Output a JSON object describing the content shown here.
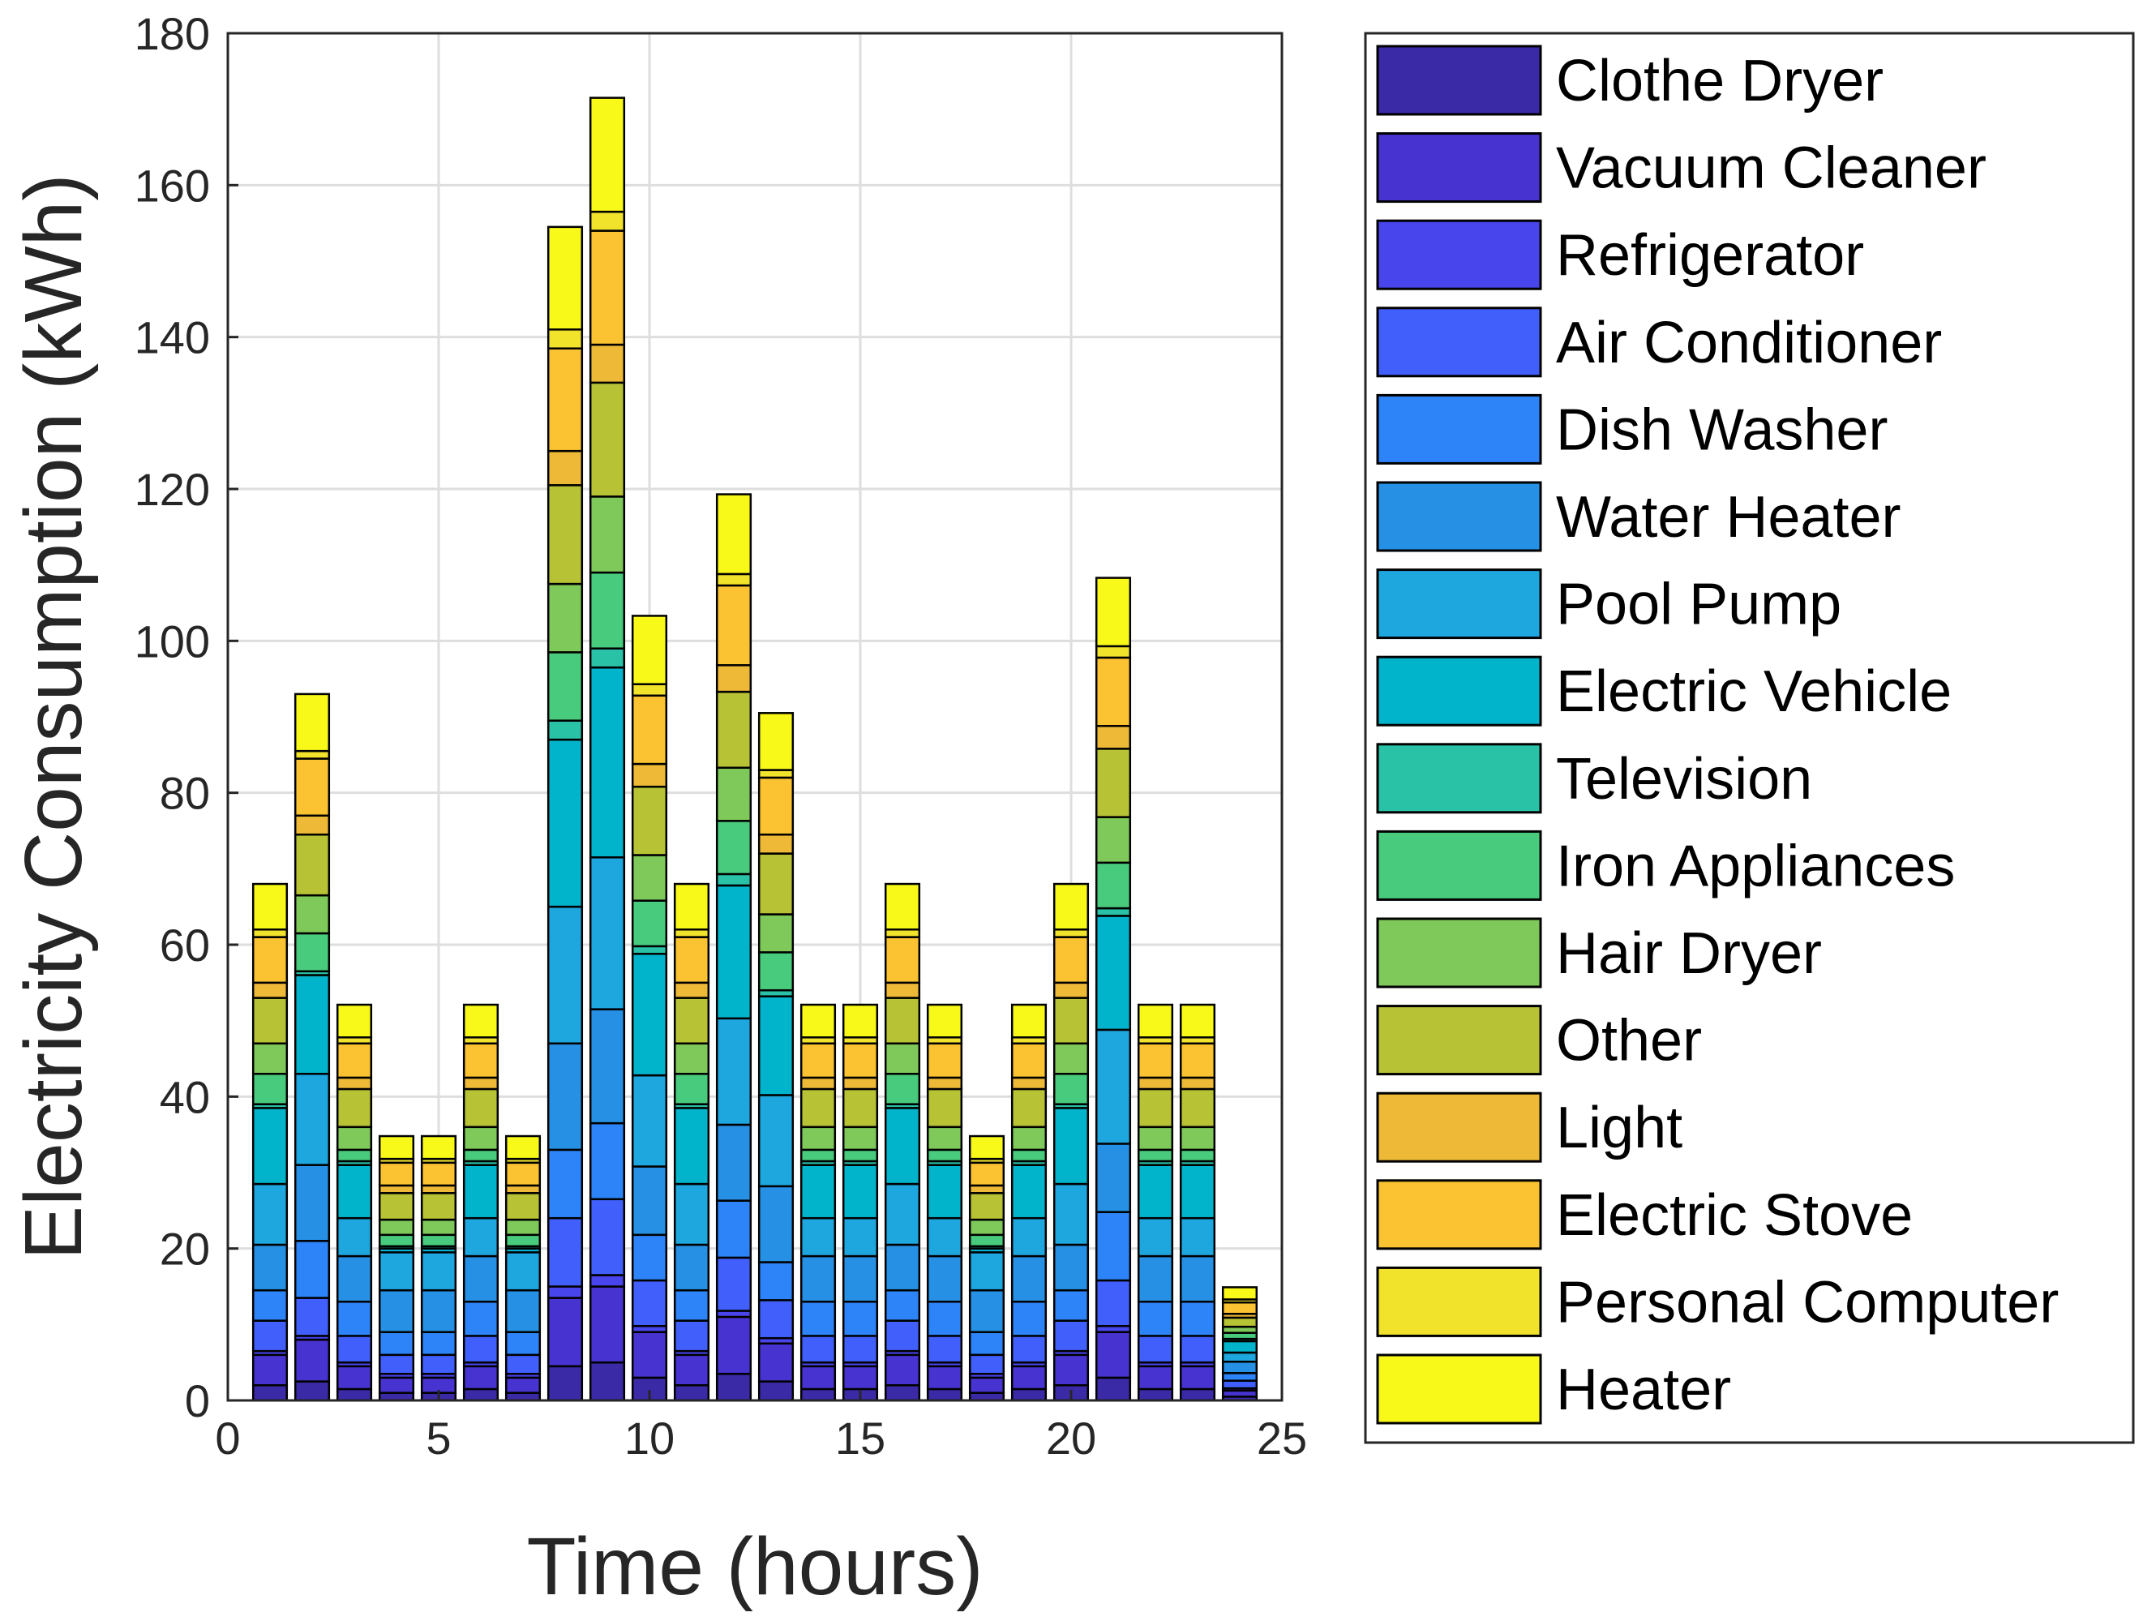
{
  "chart_data": {
    "type": "bar",
    "stacked": true,
    "title": "",
    "xlabel": "Time (hours)",
    "ylabel": "Electricity Consumption  (kWh)",
    "xlim": [
      0,
      25
    ],
    "ylim": [
      0,
      180
    ],
    "xticks": [
      0,
      5,
      10,
      15,
      20,
      25
    ],
    "yticks": [
      0,
      20,
      40,
      60,
      80,
      100,
      120,
      140,
      160,
      180
    ],
    "grid": true,
    "legend_position": "outside-right",
    "categories": [
      1,
      2,
      3,
      4,
      5,
      6,
      7,
      8,
      9,
      10,
      11,
      12,
      13,
      14,
      15,
      16,
      17,
      18,
      19,
      20,
      21,
      22,
      23,
      24
    ],
    "series": [
      {
        "name": "Clothe Dryer",
        "color": "#3a2aa6",
        "values": [
          2.0,
          2.5,
          1.5,
          1.0,
          1.0,
          1.5,
          1.0,
          4.5,
          5.0,
          3.0,
          2.0,
          3.5,
          2.5,
          1.5,
          1.5,
          2.0,
          1.5,
          1.0,
          1.5,
          2.0,
          3.0,
          1.5,
          1.5,
          0.5
        ]
      },
      {
        "name": "Vacuum Cleaner",
        "color": "#4733d0",
        "values": [
          4.0,
          5.5,
          3.0,
          2.0,
          2.0,
          3.0,
          2.0,
          9.0,
          10.0,
          6.0,
          4.0,
          7.5,
          5.0,
          3.0,
          3.0,
          4.0,
          3.0,
          2.0,
          3.0,
          4.0,
          6.0,
          3.0,
          3.0,
          0.8
        ]
      },
      {
        "name": "Refrigerator",
        "color": "#4845ec",
        "values": [
          0.5,
          0.5,
          0.5,
          0.5,
          0.5,
          0.5,
          0.5,
          1.5,
          1.5,
          0.8,
          0.5,
          0.8,
          0.7,
          0.5,
          0.5,
          0.5,
          0.5,
          0.5,
          0.5,
          0.5,
          0.8,
          0.5,
          0.5,
          0.3
        ]
      },
      {
        "name": "Air Conditioner",
        "color": "#4160fb",
        "values": [
          4.0,
          5.0,
          3.5,
          2.5,
          2.5,
          3.5,
          2.5,
          9.0,
          10.0,
          6.0,
          4.0,
          7.0,
          5.0,
          3.5,
          3.5,
          4.0,
          3.5,
          2.5,
          3.5,
          4.0,
          6.0,
          3.5,
          3.5,
          1.0
        ]
      },
      {
        "name": "Dish Washer",
        "color": "#2d83f8",
        "values": [
          4.0,
          7.5,
          4.5,
          3.0,
          3.0,
          4.5,
          3.0,
          9.0,
          10.0,
          6.0,
          4.0,
          7.5,
          5.0,
          4.5,
          4.5,
          4.0,
          4.5,
          3.0,
          4.5,
          4.0,
          9.0,
          4.5,
          4.5,
          1.0
        ]
      },
      {
        "name": "Water Heater",
        "color": "#2690e4",
        "values": [
          6.0,
          10.0,
          6.0,
          5.5,
          5.5,
          6.0,
          5.5,
          14.0,
          15.0,
          9.0,
          6.0,
          10.0,
          10.0,
          6.0,
          6.0,
          6.0,
          6.0,
          5.5,
          6.0,
          6.0,
          9.0,
          6.0,
          6.0,
          1.5
        ]
      },
      {
        "name": "Pool Pump",
        "color": "#1ea6de",
        "values": [
          8.0,
          12.0,
          5.0,
          5.0,
          5.0,
          5.0,
          5.0,
          18.0,
          20.0,
          12.0,
          8.0,
          14.0,
          12.0,
          5.0,
          5.0,
          8.0,
          5.0,
          5.0,
          5.0,
          8.0,
          15.0,
          5.0,
          5.0,
          1.2
        ]
      },
      {
        "name": "Electric Vehicle",
        "color": "#01b4cb",
        "values": [
          10.0,
          13.0,
          7.0,
          0.5,
          0.5,
          7.0,
          0.5,
          22.0,
          25.0,
          16.0,
          10.0,
          17.5,
          13.0,
          7.0,
          7.0,
          10.0,
          7.0,
          0.5,
          7.0,
          10.0,
          15.0,
          7.0,
          7.0,
          1.5
        ]
      },
      {
        "name": "Television",
        "color": "#29c2a6",
        "values": [
          0.5,
          0.5,
          0.5,
          0.3,
          0.3,
          0.5,
          0.3,
          2.5,
          2.5,
          1.0,
          0.5,
          1.5,
          0.8,
          0.5,
          0.5,
          0.5,
          0.5,
          0.3,
          0.5,
          0.5,
          1.0,
          0.5,
          0.5,
          0.3
        ]
      },
      {
        "name": "Iron Appliances",
        "color": "#48cb7d",
        "values": [
          4.0,
          5.0,
          1.5,
          1.5,
          1.5,
          1.5,
          1.5,
          9.0,
          10.0,
          6.0,
          4.0,
          7.0,
          5.0,
          1.5,
          1.5,
          4.0,
          1.5,
          1.5,
          1.5,
          4.0,
          6.0,
          1.5,
          1.5,
          0.8
        ]
      },
      {
        "name": "Hair Dryer",
        "color": "#7ec959",
        "values": [
          4.0,
          5.0,
          3.0,
          2.0,
          2.0,
          3.0,
          2.0,
          9.0,
          10.0,
          6.0,
          4.0,
          7.0,
          5.0,
          3.0,
          3.0,
          4.0,
          3.0,
          2.0,
          3.0,
          4.0,
          6.0,
          3.0,
          3.0,
          0.8
        ]
      },
      {
        "name": "Other",
        "color": "#b7c234",
        "values": [
          6.0,
          8.0,
          5.0,
          3.5,
          3.5,
          5.0,
          3.5,
          13.0,
          15.0,
          9.0,
          6.0,
          10.0,
          8.0,
          5.0,
          5.0,
          6.0,
          5.0,
          3.5,
          5.0,
          6.0,
          9.0,
          5.0,
          5.0,
          1.2
        ]
      },
      {
        "name": "Light",
        "color": "#eeb936",
        "values": [
          2.0,
          2.5,
          1.5,
          1.0,
          1.0,
          1.5,
          1.0,
          4.5,
          5.0,
          3.0,
          2.0,
          3.5,
          2.5,
          1.5,
          1.5,
          2.0,
          1.5,
          1.0,
          1.5,
          2.0,
          3.0,
          1.5,
          1.5,
          0.5
        ]
      },
      {
        "name": "Electric Stove",
        "color": "#fbc331",
        "values": [
          6.0,
          7.5,
          4.5,
          3.0,
          3.0,
          4.5,
          3.0,
          13.5,
          15.0,
          9.0,
          6.0,
          10.5,
          7.5,
          4.5,
          4.5,
          6.0,
          4.5,
          3.0,
          4.5,
          6.0,
          9.0,
          4.5,
          4.5,
          1.5
        ]
      },
      {
        "name": "Personal Computer",
        "color": "#f1e22c",
        "values": [
          1.0,
          1.0,
          0.8,
          0.5,
          0.5,
          0.8,
          0.5,
          2.5,
          2.5,
          1.5,
          1.0,
          1.5,
          1.0,
          0.8,
          0.8,
          1.0,
          0.8,
          0.5,
          0.8,
          1.0,
          1.5,
          0.8,
          0.8,
          0.4
        ]
      },
      {
        "name": "Heater",
        "color": "#f8f919",
        "values": [
          6.0,
          7.5,
          4.3,
          3.0,
          3.0,
          4.3,
          3.0,
          13.5,
          15.0,
          9.0,
          6.0,
          10.5,
          7.5,
          4.3,
          4.3,
          6.0,
          4.3,
          3.0,
          4.3,
          6.0,
          9.0,
          4.3,
          4.3,
          1.6
        ]
      }
    ]
  }
}
